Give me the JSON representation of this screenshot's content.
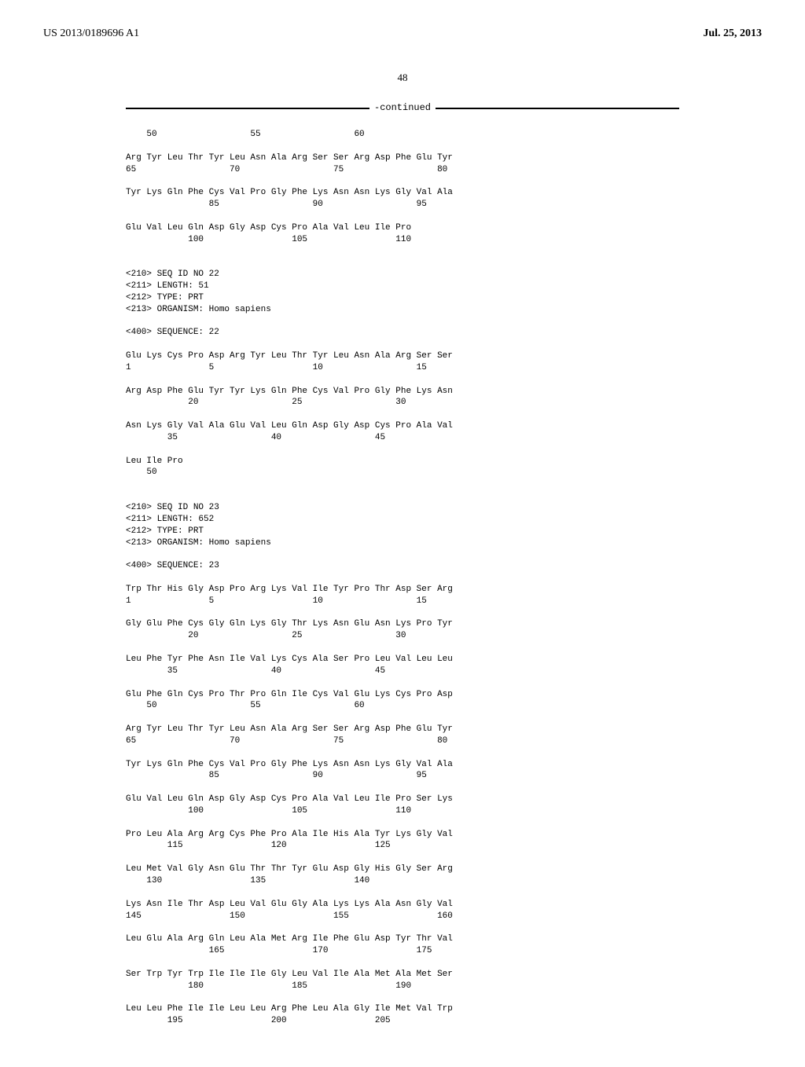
{
  "header": {
    "pub_number": "US 2013/0189696 A1",
    "pub_date": "Jul. 25, 2013"
  },
  "page_number": "48",
  "continued_label": "-continued",
  "sequence_text": "    50                  55                  60\n\nArg Tyr Leu Thr Tyr Leu Asn Ala Arg Ser Ser Arg Asp Phe Glu Tyr\n65                  70                  75                  80\n\nTyr Lys Gln Phe Cys Val Pro Gly Phe Lys Asn Asn Lys Gly Val Ala\n                85                  90                  95\n\nGlu Val Leu Gln Asp Gly Asp Cys Pro Ala Val Leu Ile Pro\n            100                 105                 110\n\n\n<210> SEQ ID NO 22\n<211> LENGTH: 51\n<212> TYPE: PRT\n<213> ORGANISM: Homo sapiens\n\n<400> SEQUENCE: 22\n\nGlu Lys Cys Pro Asp Arg Tyr Leu Thr Tyr Leu Asn Ala Arg Ser Ser\n1               5                   10                  15\n\nArg Asp Phe Glu Tyr Tyr Lys Gln Phe Cys Val Pro Gly Phe Lys Asn\n            20                  25                  30\n\nAsn Lys Gly Val Ala Glu Val Leu Gln Asp Gly Asp Cys Pro Ala Val\n        35                  40                  45\n\nLeu Ile Pro\n    50\n\n\n<210> SEQ ID NO 23\n<211> LENGTH: 652\n<212> TYPE: PRT\n<213> ORGANISM: Homo sapiens\n\n<400> SEQUENCE: 23\n\nTrp Thr His Gly Asp Pro Arg Lys Val Ile Tyr Pro Thr Asp Ser Arg\n1               5                   10                  15\n\nGly Glu Phe Cys Gly Gln Lys Gly Thr Lys Asn Glu Asn Lys Pro Tyr\n            20                  25                  30\n\nLeu Phe Tyr Phe Asn Ile Val Lys Cys Ala Ser Pro Leu Val Leu Leu\n        35                  40                  45\n\nGlu Phe Gln Cys Pro Thr Pro Gln Ile Cys Val Glu Lys Cys Pro Asp\n    50                  55                  60\n\nArg Tyr Leu Thr Tyr Leu Asn Ala Arg Ser Ser Arg Asp Phe Glu Tyr\n65                  70                  75                  80\n\nTyr Lys Gln Phe Cys Val Pro Gly Phe Lys Asn Asn Lys Gly Val Ala\n                85                  90                  95\n\nGlu Val Leu Gln Asp Gly Asp Cys Pro Ala Val Leu Ile Pro Ser Lys\n            100                 105                 110\n\nPro Leu Ala Arg Arg Cys Phe Pro Ala Ile His Ala Tyr Lys Gly Val\n        115                 120                 125\n\nLeu Met Val Gly Asn Glu Thr Thr Tyr Glu Asp Gly His Gly Ser Arg\n    130                 135                 140\n\nLys Asn Ile Thr Asp Leu Val Glu Gly Ala Lys Lys Ala Asn Gly Val\n145                 150                 155                 160\n\nLeu Glu Ala Arg Gln Leu Ala Met Arg Ile Phe Glu Asp Tyr Thr Val\n                165                 170                 175\n\nSer Trp Tyr Trp Ile Ile Ile Gly Leu Val Ile Ala Met Ala Met Ser\n            180                 185                 190\n\nLeu Leu Phe Ile Ile Leu Leu Arg Phe Leu Ala Gly Ile Met Val Trp\n        195                 200                 205"
}
